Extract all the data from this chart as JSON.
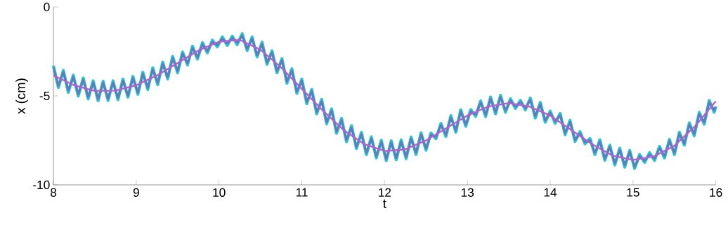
{
  "chart_data": {
    "type": "line",
    "xlabel": "t",
    "ylabel": "x (cm)",
    "xlim": [
      8,
      16
    ],
    "ylim": [
      -10,
      0
    ],
    "xticks": [
      8,
      9,
      10,
      11,
      12,
      13,
      14,
      15,
      16
    ],
    "yticks": [
      -10,
      -5,
      0
    ],
    "x": [
      8.0,
      8.06,
      8.12,
      8.18,
      8.24,
      8.3,
      8.36,
      8.42,
      8.48,
      8.54,
      8.6,
      8.66,
      8.72,
      8.78,
      8.84,
      8.9,
      8.96,
      9.02,
      9.08,
      9.14,
      9.2,
      9.26,
      9.32,
      9.38,
      9.44,
      9.5,
      9.56,
      9.62,
      9.68,
      9.74,
      9.8,
      9.86,
      9.92,
      9.98,
      10.04,
      10.1,
      10.16,
      10.22,
      10.28,
      10.34,
      10.4,
      10.46,
      10.52,
      10.58,
      10.64,
      10.7,
      10.76,
      10.82,
      10.88,
      10.94,
      11.0,
      11.06,
      11.12,
      11.18,
      11.24,
      11.3,
      11.36,
      11.42,
      11.48,
      11.54,
      11.6,
      11.66,
      11.72,
      11.78,
      11.84,
      11.9,
      11.96,
      12.02,
      12.08,
      12.14,
      12.2,
      12.26,
      12.32,
      12.38,
      12.44,
      12.5,
      12.56,
      12.62,
      12.68,
      12.74,
      12.8,
      12.86,
      12.92,
      12.98,
      13.04,
      13.1,
      13.16,
      13.22,
      13.28,
      13.34,
      13.4,
      13.46,
      13.52,
      13.58,
      13.64,
      13.7,
      13.76,
      13.82,
      13.88,
      13.94,
      14.0,
      14.06,
      14.12,
      14.18,
      14.24,
      14.3,
      14.36,
      14.42,
      14.48,
      14.54,
      14.6,
      14.66,
      14.72,
      14.78,
      14.84,
      14.9,
      14.96,
      15.02,
      15.08,
      15.14,
      15.2,
      15.26,
      15.32,
      15.38,
      15.44,
      15.5,
      15.56,
      15.62,
      15.68,
      15.74,
      15.8,
      15.86,
      15.92,
      15.98,
      16.0
    ],
    "series": [
      {
        "color": "#2ec4d4",
        "values": [
          -3.3,
          -4.53,
          -3.56,
          -4.8,
          -3.83,
          -5.01,
          -3.99,
          -5.17,
          -4.15,
          -5.27,
          -4.17,
          -5.26,
          -4.15,
          -5.21,
          -4.05,
          -5.07,
          -3.9,
          -4.91,
          -3.67,
          -4.64,
          -3.41,
          -4.37,
          -3.1,
          -4.04,
          -2.77,
          -3.7,
          -2.53,
          -3.26,
          -2.2,
          -2.93,
          -2.0,
          -2.58,
          -1.86,
          -2.24,
          -1.68,
          -2.16,
          -1.64,
          -2.12,
          -1.5,
          -2.45,
          -1.68,
          -2.81,
          -1.98,
          -3.22,
          -2.46,
          -3.7,
          -2.9,
          -4.29,
          -3.47,
          -4.86,
          -4.05,
          -5.44,
          -4.63,
          -6.01,
          -5.2,
          -6.57,
          -5.73,
          -7.1,
          -6.26,
          -7.58,
          -6.67,
          -7.96,
          -7.05,
          -8.3,
          -7.3,
          -8.49,
          -7.49,
          -8.64,
          -7.52,
          -8.59,
          -7.47,
          -8.53,
          -7.31,
          -8.29,
          -7.07,
          -8.05,
          -7.08,
          -7.41,
          -6.54,
          -7.28,
          -6.11,
          -7.04,
          -5.77,
          -6.71,
          -5.77,
          -6.15,
          -5.28,
          -6.16,
          -5.06,
          -6.01,
          -4.96,
          -5.92,
          -5.16,
          -5.7,
          -5.25,
          -5.79,
          -5.12,
          -6.24,
          -5.36,
          -6.48,
          -5.85,
          -6.54,
          -5.98,
          -7.18,
          -6.37,
          -7.56,
          -7.01,
          -7.7,
          -7.39,
          -8.3,
          -7.46,
          -8.62,
          -7.77,
          -8.88,
          -7.94,
          -9.0,
          -8.06,
          -9.08,
          -8.29,
          -8.74,
          -8.19,
          -8.63,
          -7.84,
          -8.49,
          -7.44,
          -8.3,
          -7.04,
          -7.77,
          -6.51,
          -7.24,
          -5.92,
          -6.59,
          -5.25,
          -5.92,
          -5.6
        ]
      },
      {
        "color": "#5a7fbb",
        "values": [
          -3.4,
          -4.43,
          -3.66,
          -4.7,
          -3.93,
          -4.91,
          -4.09,
          -5.07,
          -4.25,
          -5.17,
          -4.27,
          -5.16,
          -4.25,
          -5.11,
          -4.15,
          -4.97,
          -4.0,
          -4.81,
          -3.77,
          -4.54,
          -3.51,
          -4.27,
          -3.2,
          -3.94,
          -2.87,
          -3.6,
          -2.63,
          -3.16,
          -2.3,
          -2.83,
          -2.1,
          -2.48,
          -1.96,
          -2.14,
          -1.78,
          -2.06,
          -1.74,
          -2.02,
          -1.6,
          -2.35,
          -1.78,
          -2.71,
          -2.08,
          -3.12,
          -2.56,
          -3.6,
          -3.0,
          -4.19,
          -3.57,
          -4.76,
          -4.15,
          -5.34,
          -4.73,
          -5.91,
          -5.3,
          -6.47,
          -5.83,
          -7.0,
          -6.36,
          -7.48,
          -6.77,
          -7.86,
          -7.15,
          -8.2,
          -7.4,
          -8.39,
          -7.59,
          -8.54,
          -7.62,
          -8.49,
          -7.57,
          -8.43,
          -7.41,
          -8.19,
          -7.17,
          -7.95,
          -7.18,
          -7.31,
          -6.64,
          -7.18,
          -6.21,
          -6.94,
          -5.87,
          -6.61,
          -5.87,
          -6.05,
          -5.38,
          -6.06,
          -5.16,
          -5.91,
          -5.06,
          -5.82,
          -5.26,
          -5.6,
          -5.35,
          -5.69,
          -5.22,
          -6.14,
          -5.46,
          -6.38,
          -5.95,
          -6.44,
          -6.08,
          -7.08,
          -6.47,
          -7.46,
          -7.11,
          -7.6,
          -7.49,
          -8.2,
          -7.56,
          -8.52,
          -7.87,
          -8.78,
          -8.04,
          -8.9,
          -8.16,
          -8.98,
          -8.39,
          -8.64,
          -8.29,
          -8.53,
          -7.94,
          -8.39,
          -7.54,
          -8.2,
          -7.14,
          -7.67,
          -6.61,
          -7.14,
          -6.02,
          -6.49,
          -5.35,
          -5.82,
          -5.6
        ]
      },
      {
        "color": "#b360d4",
        "x": [
          8,
          8.25,
          8.5,
          8.75,
          9,
          9.25,
          9.5,
          9.75,
          10,
          10.25,
          10.5,
          10.75,
          11,
          11.25,
          11.5,
          11.75,
          12,
          12.25,
          12.5,
          12.75,
          13,
          13.25,
          13.5,
          13.75,
          14,
          14.25,
          14.5,
          14.75,
          15,
          15.25,
          15.5,
          15.75,
          16
        ],
        "values": [
          -3.85,
          -4.4,
          -4.72,
          -4.7,
          -4.4,
          -3.85,
          -3.15,
          -2.45,
          -1.95,
          -1.85,
          -2.4,
          -3.4,
          -4.6,
          -5.8,
          -6.9,
          -7.7,
          -8.1,
          -8.0,
          -7.5,
          -6.8,
          -6.1,
          -5.6,
          -5.4,
          -5.6,
          -6.1,
          -6.9,
          -7.7,
          -8.35,
          -8.6,
          -8.4,
          -7.8,
          -6.7,
          -5.3
        ]
      }
    ]
  }
}
